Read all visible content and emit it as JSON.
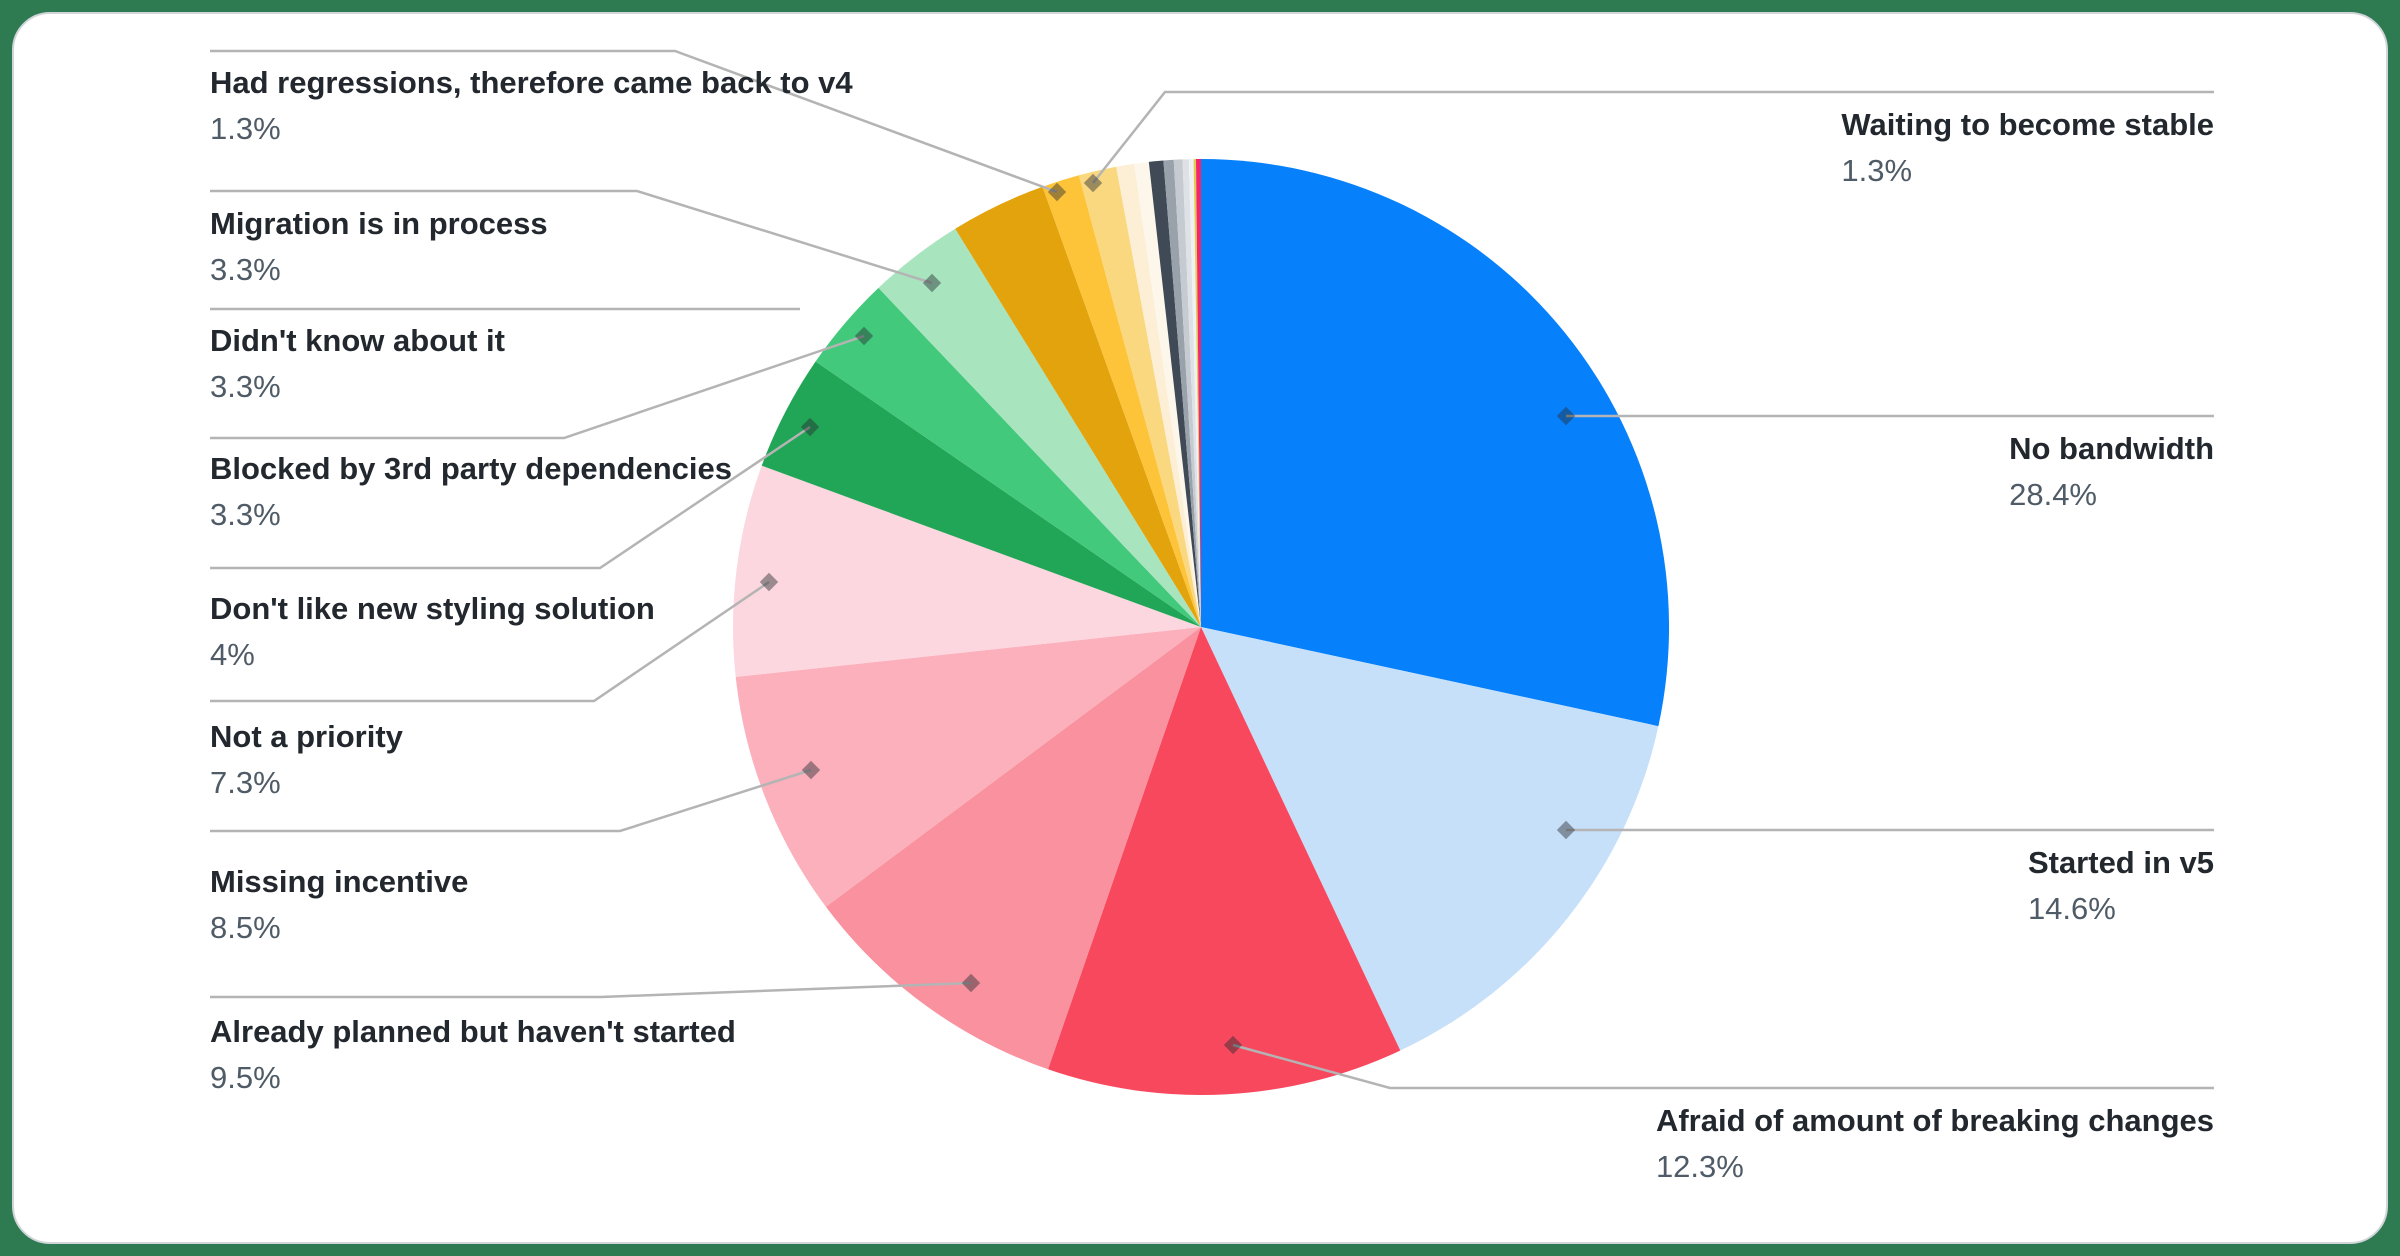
{
  "page": {
    "background_color": "#2e7a51",
    "card_color": "#ffffff",
    "card_border_color": "#d0d5d9"
  },
  "chart_data": {
    "type": "pie",
    "title": "",
    "start_angle_deg_clockwise_from_top": 0,
    "legend_position": "callout-labels",
    "segments": [
      {
        "label": "No bandwidth",
        "value": 28.4,
        "pct_text": "28.4%",
        "color": "#0781fb",
        "side": "right"
      },
      {
        "label": "Started in v5",
        "value": 14.6,
        "pct_text": "14.6%",
        "color": "#c7e0f9",
        "side": "right"
      },
      {
        "label": "Afraid of amount of breaking changes",
        "value": 12.3,
        "pct_text": "12.3%",
        "color": "#f8485e",
        "side": "right"
      },
      {
        "label": "Already planned but haven't started",
        "value": 9.5,
        "pct_text": "9.5%",
        "color": "#f9919e",
        "side": "left"
      },
      {
        "label": "Missing incentive",
        "value": 8.5,
        "pct_text": "8.5%",
        "color": "#fbb0bc",
        "side": "left"
      },
      {
        "label": "Not a priority",
        "value": 7.3,
        "pct_text": "7.3%",
        "color": "#fcd7df",
        "side": "left"
      },
      {
        "label": "Don't like new styling solution",
        "value": 4,
        "pct_text": "4%",
        "color": "#21a556",
        "side": "left"
      },
      {
        "label": "Blocked by 3rd party dependencies",
        "value": 3.3,
        "pct_text": "3.3%",
        "color": "#43c97b",
        "side": "left"
      },
      {
        "label": "Didn't know about it",
        "value": 3.3,
        "pct_text": "3.3%",
        "color": "#a8e5bf",
        "side": "left"
      },
      {
        "label": "Migration is in process",
        "value": 3.3,
        "pct_text": "3.3%",
        "color": "#e2a30c",
        "side": "left"
      },
      {
        "label": "Had regressions, therefore came back to v4",
        "value": 1.3,
        "pct_text": "1.3%",
        "color": "#fdc43a",
        "side": "left"
      },
      {
        "label": "Waiting to become stable",
        "value": 1.3,
        "pct_text": "1.3%",
        "color": "#fad880",
        "side": "right"
      }
    ],
    "unlabeled_segments": [
      {
        "value": 0.62,
        "color": "#fcefd6"
      },
      {
        "value": 0.5,
        "color": "#fdf7eb"
      },
      {
        "value": 0.5,
        "color": "#3f4a56"
      },
      {
        "value": 0.35,
        "color": "#99a2ab"
      },
      {
        "value": 0.3,
        "color": "#c6cbd1"
      },
      {
        "value": 0.22,
        "color": "#dee1e5"
      },
      {
        "value": 0.16,
        "color": "#eff1f2"
      },
      {
        "value": 0.08,
        "color": "#e0cc52"
      },
      {
        "value": 0.17,
        "color": "#f5256b"
      }
    ],
    "callout_line_color": "#b4b4b4",
    "marker_color": "rgba(40,45,50,0.45)",
    "label_name_color": "#22282e",
    "label_pct_color": "#4f5b66"
  }
}
